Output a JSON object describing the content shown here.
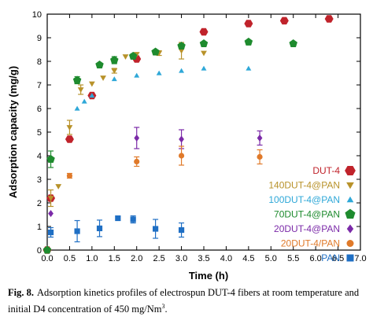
{
  "chart_data": {
    "type": "scatter",
    "title": "",
    "xlabel": "Time (h)",
    "ylabel": "Adsorption capacity (mg/g)",
    "xlim": [
      0,
      7
    ],
    "ylim": [
      0,
      10
    ],
    "xticks": [
      "0.0",
      "0.5",
      "1.0",
      "1.5",
      "2.0",
      "2.5",
      "3.0",
      "3.5",
      "4.0",
      "4.5",
      "5.0",
      "5.5",
      "6.0",
      "6.5",
      "7.0"
    ],
    "yticks": [
      "0",
      "1",
      "2",
      "3",
      "4",
      "5",
      "6",
      "7",
      "8",
      "9",
      "10"
    ],
    "grid": false,
    "legend_position": "bottom-right",
    "series": [
      {
        "name": "DUT-4",
        "color": "#c0232b",
        "marker": "hexagon",
        "x": [
          0.0,
          0.08,
          0.5,
          1.0,
          2.0,
          3.5,
          4.5,
          5.3,
          6.3
        ],
        "y": [
          0.0,
          2.2,
          4.7,
          6.55,
          8.1,
          9.25,
          9.6,
          9.72,
          9.8
        ],
        "err": [
          0,
          0,
          0,
          0,
          0,
          0,
          0,
          0,
          0
        ]
      },
      {
        "name": "140DUT-4@PAN",
        "color": "#b8922a",
        "marker": "triangle-down",
        "x": [
          0.0,
          0.08,
          0.25,
          0.5,
          0.75,
          1.0,
          1.25,
          1.5,
          1.75,
          2.0,
          2.5,
          3.0,
          3.5
        ],
        "y": [
          0.0,
          2.2,
          2.7,
          5.2,
          6.8,
          7.05,
          7.3,
          7.6,
          8.2,
          8.3,
          8.35,
          8.45,
          8.35
        ],
        "err": [
          0,
          0.35,
          0,
          0.3,
          0.2,
          0,
          0,
          0.1,
          0,
          0,
          0.1,
          0.35,
          0
        ]
      },
      {
        "name": "100DUT-4@PAN",
        "color": "#2fa8d8",
        "marker": "triangle-up",
        "x": [
          0.67,
          0.83,
          1.0,
          1.5,
          2.0,
          2.5,
          3.0,
          3.5,
          4.5
        ],
        "y": [
          6.0,
          6.3,
          6.55,
          7.25,
          7.4,
          7.5,
          7.6,
          7.7,
          7.7
        ],
        "err": [
          0,
          0,
          0,
          0,
          0,
          0,
          0,
          0,
          0
        ]
      },
      {
        "name": "70DUT-4@PAN",
        "color": "#1e8b2e",
        "marker": "pentagon",
        "x": [
          0.0,
          0.08,
          0.67,
          1.17,
          1.5,
          1.92,
          2.42,
          3.0,
          3.5,
          4.5,
          5.5
        ],
        "y": [
          0.0,
          3.85,
          7.2,
          7.85,
          8.05,
          8.22,
          8.4,
          8.65,
          8.75,
          8.82,
          8.75
        ],
        "err": [
          0,
          0.35,
          0.15,
          0,
          0.15,
          0.1,
          0.08,
          0.1,
          0,
          0,
          0
        ]
      },
      {
        "name": "20DUT-4@PAN",
        "color": "#7b2aa8",
        "marker": "diamond",
        "x": [
          0.08,
          2.0,
          3.0,
          4.75
        ],
        "y": [
          1.55,
          4.75,
          4.7,
          4.75
        ],
        "err": [
          0,
          0.45,
          0.4,
          0.3
        ]
      },
      {
        "name": "20DUT-4/PAN",
        "color": "#e07a2a",
        "marker": "circle",
        "x": [
          0.5,
          2.0,
          3.0,
          4.75
        ],
        "y": [
          3.15,
          3.75,
          4.0,
          3.95
        ],
        "err": [
          0.1,
          0.2,
          0.4,
          0.3
        ]
      },
      {
        "name": "PAN",
        "color": "#1f6fc4",
        "marker": "square",
        "x": [
          0.08,
          0.67,
          1.17,
          1.58,
          1.92,
          2.42,
          3.0
        ],
        "y": [
          0.75,
          0.8,
          0.92,
          1.35,
          1.3,
          0.9,
          0.85
        ],
        "err": [
          0.2,
          0.45,
          0.35,
          0,
          0.15,
          0.4,
          0.3
        ]
      }
    ]
  },
  "caption": {
    "label": "Fig. 8.",
    "text": "Adsorption kinetics profiles of electrospun DUT-4 fibers at room temperature and initial D4 concentration of 450 mg/Nm",
    "superscript": "3",
    "end": "."
  }
}
